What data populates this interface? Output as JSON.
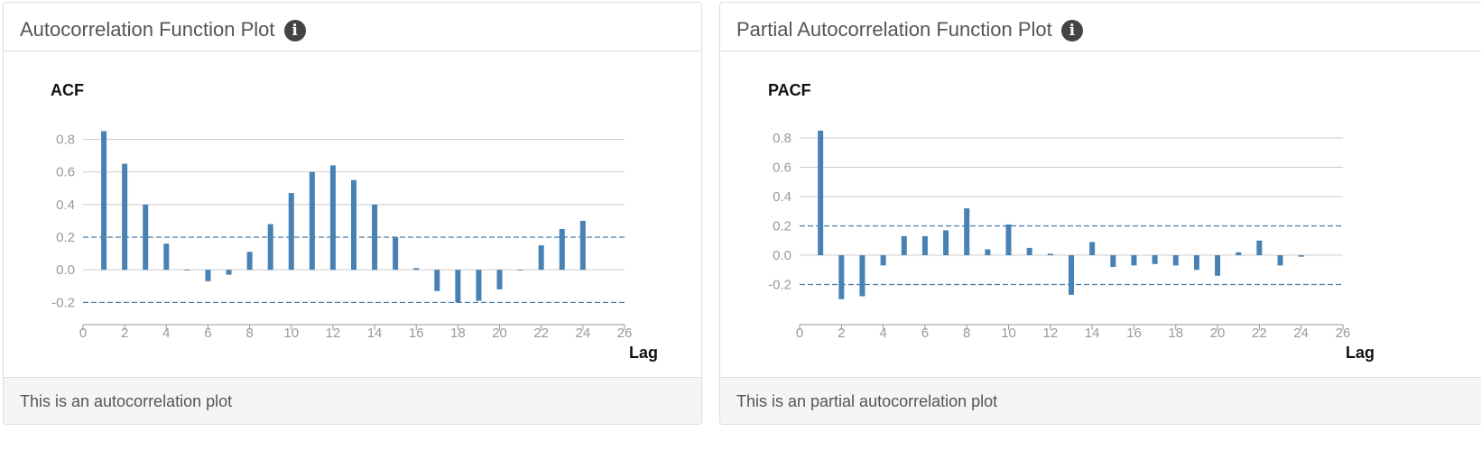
{
  "panels": [
    {
      "heading": "Autocorrelation Function Plot",
      "info_icon": "info-icon",
      "footer": "This is an autocorrelation plot"
    },
    {
      "heading": "Partial Autocorrelation Function Plot",
      "info_icon": "info-icon",
      "footer": "This is an partial autocorrelation plot"
    }
  ],
  "colors": {
    "bar": "#4682b4",
    "grid": "#cccccc",
    "confidence": "#4a7aa6",
    "tick": "#999999"
  },
  "chart_data": [
    {
      "type": "bar",
      "title": "ACF",
      "xlabel": "Lag",
      "ylabel": "",
      "xlim": [
        0,
        26
      ],
      "ylim": [
        -0.27,
        0.88
      ],
      "x_ticks": [
        0,
        2,
        4,
        6,
        8,
        10,
        12,
        14,
        16,
        18,
        20,
        22,
        24,
        26
      ],
      "y_ticks": [
        -0.2,
        0.0,
        0.2,
        0.4,
        0.6,
        0.8
      ],
      "y_tick_labels": [
        "-0.2",
        "0.0",
        "0.2",
        "0.4",
        "0.6",
        "0.8"
      ],
      "confidence_bounds": [
        0.2,
        -0.2
      ],
      "grid": true,
      "x": [
        1,
        2,
        3,
        4,
        5,
        6,
        7,
        8,
        9,
        10,
        11,
        12,
        13,
        14,
        15,
        16,
        17,
        18,
        19,
        20,
        21,
        22,
        23,
        24
      ],
      "values": [
        0.85,
        0.65,
        0.4,
        0.16,
        0.0,
        -0.07,
        -0.03,
        0.11,
        0.28,
        0.47,
        0.6,
        0.64,
        0.55,
        0.4,
        0.2,
        0.01,
        -0.13,
        -0.2,
        -0.19,
        -0.12,
        0.0,
        0.15,
        0.25,
        0.3
      ]
    },
    {
      "type": "bar",
      "title": "PACF",
      "xlabel": "Lag",
      "ylabel": "",
      "xlim": [
        0,
        26
      ],
      "ylim": [
        -0.4,
        0.88
      ],
      "x_ticks": [
        0,
        2,
        4,
        6,
        8,
        10,
        12,
        14,
        16,
        18,
        20,
        22,
        24,
        26
      ],
      "y_ticks": [
        -0.2,
        0.0,
        0.2,
        0.4,
        0.6,
        0.8
      ],
      "y_tick_labels": [
        "-0.2",
        "0.0",
        "0.2",
        "0.4",
        "0.6",
        "0.8"
      ],
      "confidence_bounds": [
        0.2,
        -0.2
      ],
      "grid": true,
      "x": [
        1,
        2,
        3,
        4,
        5,
        6,
        7,
        8,
        9,
        10,
        11,
        12,
        13,
        14,
        15,
        16,
        17,
        18,
        19,
        20,
        21,
        22,
        23,
        24
      ],
      "values": [
        0.85,
        -0.3,
        -0.28,
        -0.07,
        0.13,
        0.13,
        0.17,
        0.32,
        0.04,
        0.21,
        0.05,
        0.01,
        -0.27,
        0.09,
        -0.08,
        -0.07,
        -0.06,
        -0.07,
        -0.1,
        -0.14,
        0.02,
        0.1,
        -0.07,
        -0.01
      ]
    }
  ]
}
